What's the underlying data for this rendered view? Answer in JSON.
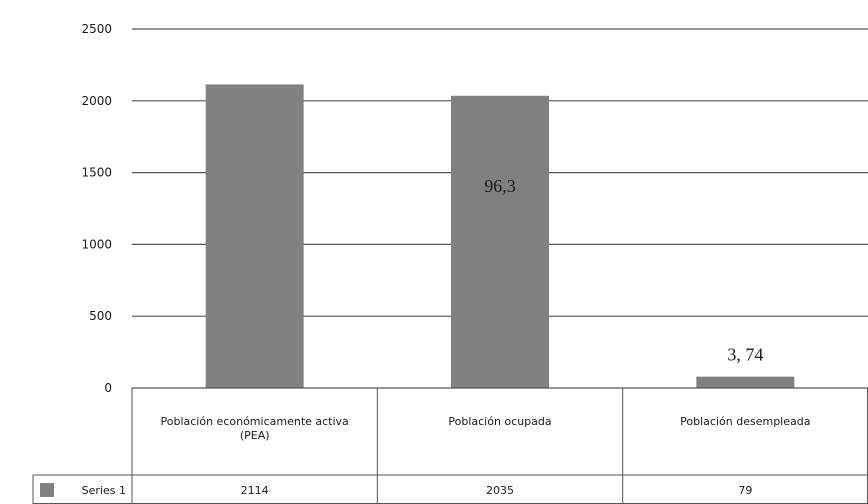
{
  "chart_data": {
    "type": "bar",
    "categories": [
      [
        "Población económicamente activa",
        "(PEA)"
      ],
      [
        "Población ocupada"
      ],
      [
        "Población desempleada"
      ]
    ],
    "series": [
      {
        "name": "Series 1",
        "values": [
          2114,
          2035,
          79
        ],
        "value_labels": [
          "2114",
          "2035",
          "79"
        ]
      }
    ],
    "annotations": [
      {
        "category_index": 1,
        "text": "96,3"
      },
      {
        "category_index": 2,
        "text": "3, 74"
      }
    ],
    "y_ticks": [
      0,
      500,
      1000,
      1500,
      2000,
      2500
    ],
    "ylim": [
      0,
      2500
    ],
    "grid": true,
    "legend": "data-table-left",
    "colors": {
      "bar": "#808080",
      "gridline": "#555555",
      "table_border": "#555555",
      "legend_swatch": "#808080"
    }
  }
}
